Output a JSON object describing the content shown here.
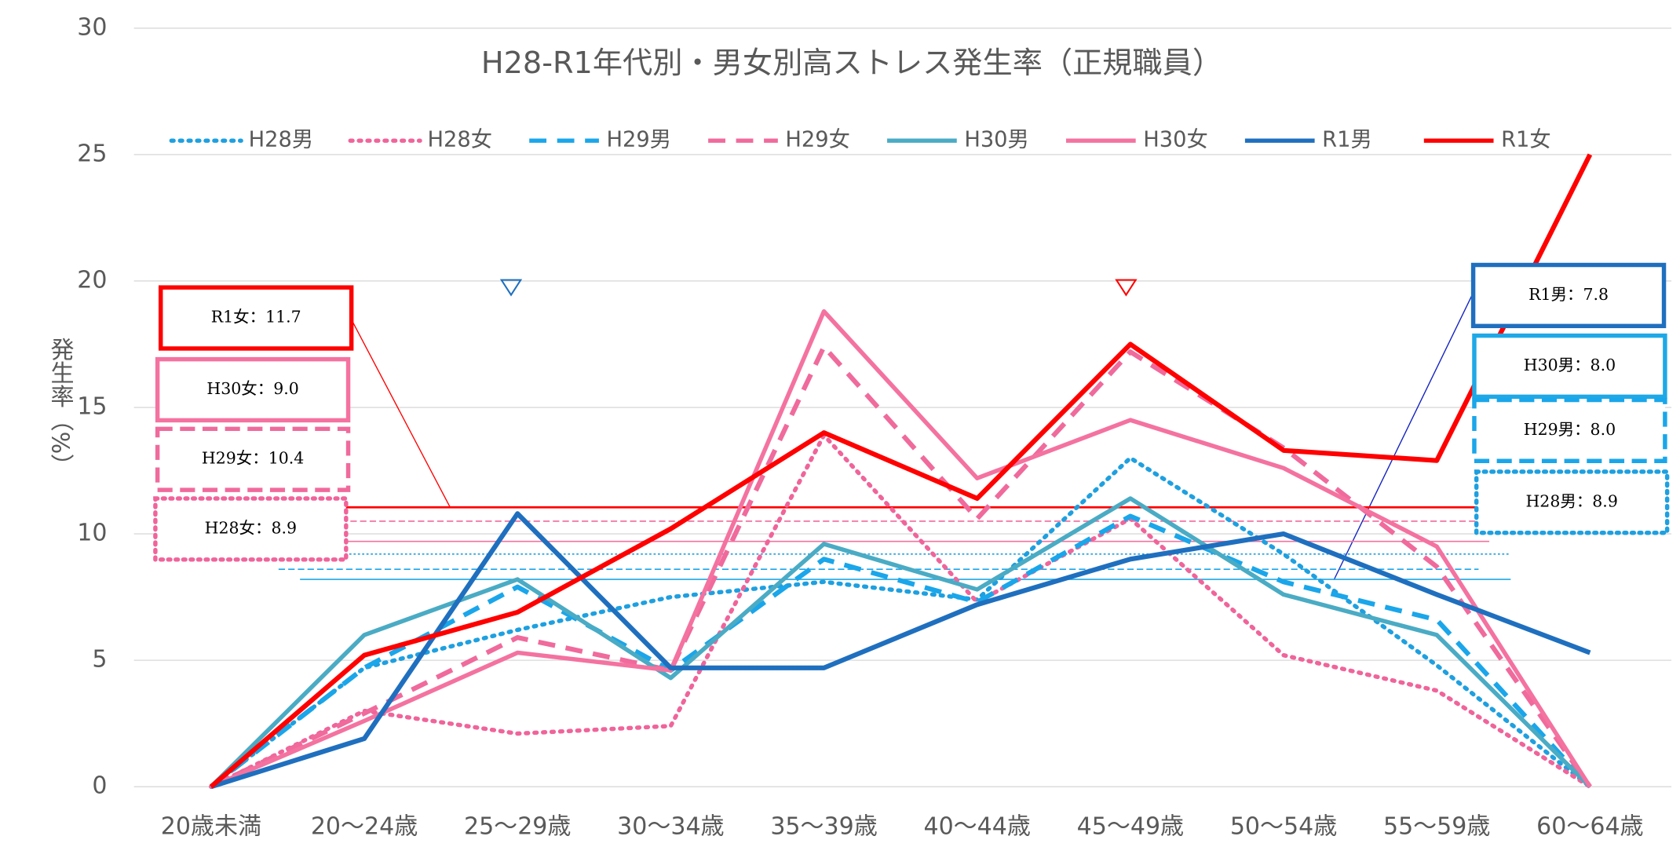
{
  "chart_data": {
    "type": "line",
    "title": "H28-R1年代別・男女別高ストレス発生率（正規職員）",
    "y_label": "発生率（%）",
    "categories": [
      "20歳未満",
      "20～24歳",
      "25～29歳",
      "30～34歳",
      "35～39歳",
      "40～44歳",
      "45～49歳",
      "50～54歳",
      "55～59歳",
      "60～64歳"
    ],
    "ylim": [
      0,
      30
    ],
    "yticks": [
      0,
      5,
      10,
      15,
      20,
      25,
      30
    ],
    "grid": true,
    "legend": "top",
    "series": [
      {
        "name": "H28男",
        "color": "#1ea0e0",
        "style": "dotted",
        "values": [
          0,
          4.7,
          6.2,
          7.5,
          8.1,
          7.4,
          13.0,
          9.2,
          4.8,
          0
        ]
      },
      {
        "name": "H28女",
        "color": "#f0649a",
        "style": "dotted",
        "values": [
          0,
          3.0,
          2.1,
          2.4,
          13.9,
          7.3,
          10.6,
          5.2,
          3.8,
          0
        ]
      },
      {
        "name": "H29男",
        "color": "#1aa6ea",
        "style": "dashed",
        "values": [
          0,
          4.7,
          7.9,
          4.6,
          9.0,
          7.3,
          10.7,
          8.1,
          6.6,
          0
        ]
      },
      {
        "name": "H29女",
        "color": "#f06a9c",
        "style": "dashed",
        "values": [
          0,
          2.9,
          5.9,
          4.6,
          17.4,
          10.6,
          17.2,
          13.4,
          8.7,
          0
        ]
      },
      {
        "name": "H30男",
        "color": "#4aabc4",
        "style": "solid",
        "values": [
          0,
          6.0,
          8.2,
          4.3,
          9.6,
          7.8,
          11.4,
          7.6,
          6.0,
          0
        ]
      },
      {
        "name": "H30女",
        "color": "#f472a0",
        "style": "solid",
        "values": [
          0,
          2.6,
          5.3,
          4.6,
          18.8,
          12.2,
          14.5,
          12.6,
          9.5,
          0
        ]
      },
      {
        "name": "R1男",
        "color": "#1f6fbf",
        "style": "solid",
        "values": [
          0,
          1.9,
          10.8,
          4.7,
          4.7,
          7.2,
          9.0,
          10.0,
          7.6,
          5.3
        ]
      },
      {
        "name": "R1女",
        "color": "#ff0000",
        "style": "solid",
        "values": [
          0,
          5.2,
          6.9,
          10.2,
          14.0,
          11.4,
          17.5,
          13.3,
          12.9,
          25.0
        ]
      }
    ],
    "annotations": [
      {
        "text": "R1女：11.7",
        "color": "#ff0000",
        "style": "solid",
        "line_value": 11.05
      },
      {
        "text": "H30女：9.0",
        "color": "#f472a0",
        "style": "solid",
        "line_value": 9.7
      },
      {
        "text": "H29女：10.4",
        "color": "#f06a9c",
        "style": "dashed",
        "line_value": 10.5
      },
      {
        "text": "H28女：8.9",
        "color": "#f0649a",
        "style": "dotted"
      },
      {
        "text": "R1男：7.8",
        "color": "#1f6fbf",
        "style": "solid"
      },
      {
        "text": "H30男：8.0",
        "color": "#1ea8e6",
        "style": "solid",
        "line_value": 8.2
      },
      {
        "text": "H29男：8.0",
        "color": "#1aa6ea",
        "style": "dashed",
        "line_value": 8.6
      },
      {
        "text": "H28男：8.9",
        "color": "#1ea0e0",
        "style": "dotted",
        "line_value": 9.2
      }
    ]
  }
}
